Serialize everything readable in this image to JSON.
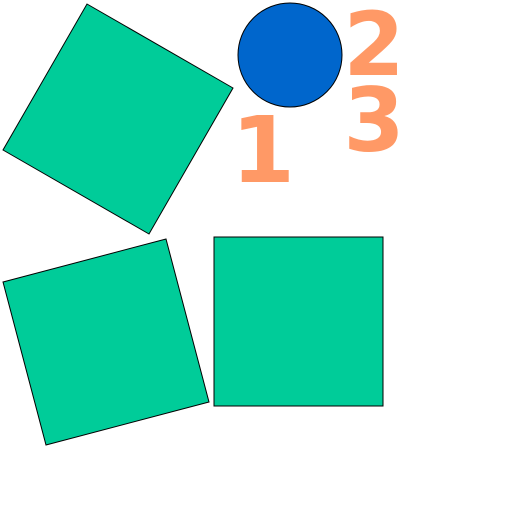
{
  "colors": {
    "background": "#ffffff",
    "square_fill": "#00cc99",
    "square_stroke": "#000000",
    "circle_fill": "#0066cc",
    "circle_stroke": "#000000",
    "digit_fill": "#ff9966"
  },
  "shapes": {
    "squares": [
      {
        "name": "square-top-left-rotated"
      },
      {
        "name": "square-bottom-left-rotated"
      },
      {
        "name": "square-bottom-center"
      }
    ],
    "circle": {
      "name": "circle-blue"
    }
  },
  "digits": {
    "one": "1",
    "two": "2",
    "three": "3"
  }
}
